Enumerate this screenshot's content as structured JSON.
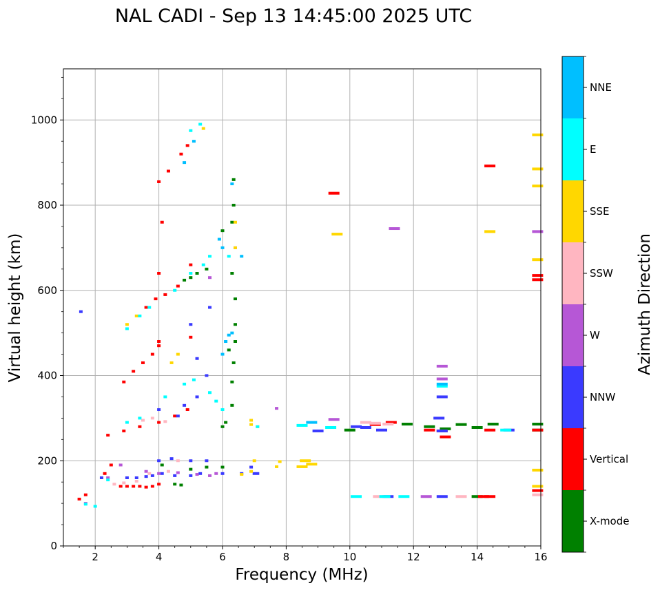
{
  "chart_data": {
    "type": "scatter",
    "title": "NAL CADI - Sep 13 14:45:00 2025 UTC",
    "xlabel": "Frequency (MHz)",
    "ylabel": "Virtual height (km)",
    "xlim": [
      1,
      16
    ],
    "ylim": [
      0,
      1120
    ],
    "xticks": [
      2,
      4,
      6,
      8,
      10,
      12,
      14,
      16
    ],
    "yticks": [
      0,
      200,
      400,
      600,
      800,
      1000
    ],
    "grid": true,
    "colorbar": {
      "label": "Azimuth Direction",
      "categories": [
        "X-mode",
        "Vertical",
        "NNW",
        "W",
        "SSW",
        "SSE",
        "E",
        "NNE"
      ],
      "colors": [
        "#008000",
        "#ff0000",
        "#3a3aff",
        "#b657d6",
        "#ffb6c1",
        "#ffd700",
        "#00ffff",
        "#00bfff"
      ]
    },
    "series": [
      {
        "name": "X-mode",
        "points": [
          [
            4.5,
            145
          ],
          [
            4.7,
            143
          ],
          [
            5.0,
            180
          ],
          [
            5.5,
            185
          ],
          [
            6.0,
            185
          ],
          [
            6.0,
            280
          ],
          [
            6.1,
            290
          ],
          [
            6.3,
            330
          ],
          [
            6.3,
            385
          ],
          [
            6.35,
            430
          ],
          [
            6.4,
            480
          ],
          [
            6.4,
            520
          ],
          [
            6.4,
            580
          ],
          [
            6.3,
            640
          ],
          [
            6.3,
            760
          ],
          [
            6.35,
            800
          ],
          [
            6.35,
            860
          ],
          [
            5.5,
            650
          ],
          [
            5.2,
            640
          ],
          [
            5.0,
            630
          ],
          [
            4.8,
            624
          ],
          [
            6.0,
            740
          ],
          [
            6.2,
            460
          ],
          [
            12.5,
            280
          ],
          [
            13.0,
            275
          ],
          [
            13.5,
            285
          ],
          [
            14.0,
            278
          ],
          [
            14.5,
            286
          ],
          [
            15.9,
            286
          ],
          [
            15.9,
            272
          ],
          [
            14.0,
            116
          ],
          [
            10.0,
            272
          ],
          [
            11.8,
            286
          ],
          [
            4.1,
            190
          ]
        ]
      },
      {
        "name": "Vertical",
        "points": [
          [
            1.5,
            110
          ],
          [
            1.7,
            120
          ],
          [
            2.3,
            170
          ],
          [
            2.5,
            190
          ],
          [
            2.8,
            140
          ],
          [
            3.0,
            140
          ],
          [
            3.2,
            140
          ],
          [
            3.4,
            140
          ],
          [
            3.6,
            138
          ],
          [
            3.8,
            140
          ],
          [
            4.0,
            145
          ],
          [
            2.4,
            260
          ],
          [
            2.9,
            270
          ],
          [
            3.4,
            280
          ],
          [
            4.0,
            290
          ],
          [
            4.5,
            305
          ],
          [
            4.9,
            320
          ],
          [
            2.9,
            385
          ],
          [
            3.2,
            410
          ],
          [
            3.5,
            430
          ],
          [
            3.8,
            450
          ],
          [
            4.0,
            470
          ],
          [
            4.0,
            480
          ],
          [
            3.6,
            560
          ],
          [
            3.9,
            580
          ],
          [
            4.2,
            590
          ],
          [
            4.6,
            610
          ],
          [
            5.0,
            660
          ],
          [
            4.0,
            855
          ],
          [
            4.3,
            880
          ],
          [
            4.7,
            920
          ],
          [
            4.9,
            940
          ],
          [
            4.1,
            760
          ],
          [
            4.0,
            640
          ],
          [
            9.5,
            828
          ],
          [
            14.4,
            892
          ],
          [
            10.8,
            285
          ],
          [
            11.3,
            290
          ],
          [
            12.5,
            272
          ],
          [
            12.9,
            270
          ],
          [
            13.0,
            256
          ],
          [
            14.4,
            272
          ],
          [
            15.9,
            635
          ],
          [
            15.9,
            625
          ],
          [
            15.9,
            272
          ],
          [
            15.9,
            130
          ],
          [
            14.2,
            116
          ],
          [
            14.4,
            116
          ],
          [
            5.0,
            490
          ]
        ]
      },
      {
        "name": "NNW",
        "points": [
          [
            1.55,
            550
          ],
          [
            2.2,
            160
          ],
          [
            3.0,
            160
          ],
          [
            3.3,
            160
          ],
          [
            3.6,
            163
          ],
          [
            3.8,
            165
          ],
          [
            4.1,
            170
          ],
          [
            4.5,
            165
          ],
          [
            5.0,
            165
          ],
          [
            5.3,
            170
          ],
          [
            6.0,
            170
          ],
          [
            6.6,
            170
          ],
          [
            6.9,
            185
          ],
          [
            7.1,
            170
          ],
          [
            4.0,
            200
          ],
          [
            4.4,
            205
          ],
          [
            5.0,
            200
          ],
          [
            5.5,
            200
          ],
          [
            4.8,
            330
          ],
          [
            5.2,
            350
          ],
          [
            5.5,
            400
          ],
          [
            5.2,
            440
          ],
          [
            5.0,
            520
          ],
          [
            5.6,
            560
          ],
          [
            4.6,
            305
          ],
          [
            4.0,
            320
          ],
          [
            7.0,
            170
          ],
          [
            9.0,
            270
          ],
          [
            10.2,
            280
          ],
          [
            10.5,
            278
          ],
          [
            11.0,
            272
          ],
          [
            12.8,
            300
          ],
          [
            12.9,
            350
          ],
          [
            12.9,
            270
          ],
          [
            15.0,
            272
          ],
          [
            12.9,
            116
          ],
          [
            11.2,
            116
          ]
        ]
      },
      {
        "name": "W",
        "points": [
          [
            1.7,
            100
          ],
          [
            2.4,
            160
          ],
          [
            2.8,
            190
          ],
          [
            3.6,
            175
          ],
          [
            4.0,
            170
          ],
          [
            4.6,
            172
          ],
          [
            5.2,
            168
          ],
          [
            5.6,
            165
          ],
          [
            5.8,
            170
          ],
          [
            7.7,
            323
          ],
          [
            9.5,
            297
          ],
          [
            11.4,
            745
          ],
          [
            12.9,
            422
          ],
          [
            12.9,
            392
          ],
          [
            15.9,
            738
          ],
          [
            6.4,
            700
          ],
          [
            5.6,
            630
          ],
          [
            12.4,
            116
          ]
        ]
      },
      {
        "name": "SSW",
        "points": [
          [
            2.6,
            145
          ],
          [
            2.9,
            148
          ],
          [
            3.3,
            152
          ],
          [
            3.7,
            170
          ],
          [
            4.3,
            175
          ],
          [
            4.6,
            200
          ],
          [
            3.5,
            295
          ],
          [
            3.8,
            300
          ],
          [
            4.2,
            292
          ],
          [
            10.5,
            290
          ],
          [
            10.8,
            288
          ],
          [
            11.2,
            286
          ],
          [
            13.5,
            116
          ],
          [
            10.9,
            116
          ],
          [
            15.9,
            120
          ]
        ]
      },
      {
        "name": "SSE",
        "points": [
          [
            6.6,
            168
          ],
          [
            6.9,
            175
          ],
          [
            7.0,
            200
          ],
          [
            7.7,
            186
          ],
          [
            7.8,
            198
          ],
          [
            8.5,
            186
          ],
          [
            8.6,
            200
          ],
          [
            8.8,
            192
          ],
          [
            6.9,
            295
          ],
          [
            6.9,
            285
          ],
          [
            7.1,
            280
          ],
          [
            4.4,
            430
          ],
          [
            4.6,
            450
          ],
          [
            3.0,
            520
          ],
          [
            3.3,
            540
          ],
          [
            5.4,
            980
          ],
          [
            9.6,
            732
          ],
          [
            14.4,
            738
          ],
          [
            15.9,
            965
          ],
          [
            15.9,
            885
          ],
          [
            15.9,
            845
          ],
          [
            15.9,
            672
          ],
          [
            15.9,
            178
          ],
          [
            15.9,
            140
          ],
          [
            6.4,
            760
          ],
          [
            6.4,
            700
          ]
        ]
      },
      {
        "name": "E",
        "points": [
          [
            1.7,
            98
          ],
          [
            2.0,
            93
          ],
          [
            2.4,
            155
          ],
          [
            3.0,
            290
          ],
          [
            3.4,
            300
          ],
          [
            4.2,
            350
          ],
          [
            4.8,
            380
          ],
          [
            5.1,
            390
          ],
          [
            5.6,
            360
          ],
          [
            5.8,
            340
          ],
          [
            6.0,
            320
          ],
          [
            3.0,
            510
          ],
          [
            3.4,
            540
          ],
          [
            3.7,
            560
          ],
          [
            4.5,
            600
          ],
          [
            5.0,
            640
          ],
          [
            5.4,
            660
          ],
          [
            5.6,
            680
          ],
          [
            6.2,
            680
          ],
          [
            7.1,
            280
          ],
          [
            8.5,
            283
          ],
          [
            9.4,
            278
          ],
          [
            10.2,
            116
          ],
          [
            11.1,
            116
          ],
          [
            11.7,
            116
          ],
          [
            14.9,
            272
          ],
          [
            12.9,
            375
          ],
          [
            5.0,
            975
          ],
          [
            5.3,
            990
          ]
        ]
      },
      {
        "name": "NNE",
        "points": [
          [
            4.8,
            900
          ],
          [
            5.1,
            950
          ],
          [
            5.9,
            720
          ],
          [
            6.0,
            700
          ],
          [
            6.3,
            850
          ],
          [
            6.6,
            680
          ],
          [
            6.3,
            500
          ],
          [
            6.2,
            495
          ],
          [
            6.1,
            480
          ],
          [
            6.0,
            450
          ],
          [
            8.8,
            290
          ],
          [
            12.9,
            380
          ]
        ]
      }
    ]
  }
}
